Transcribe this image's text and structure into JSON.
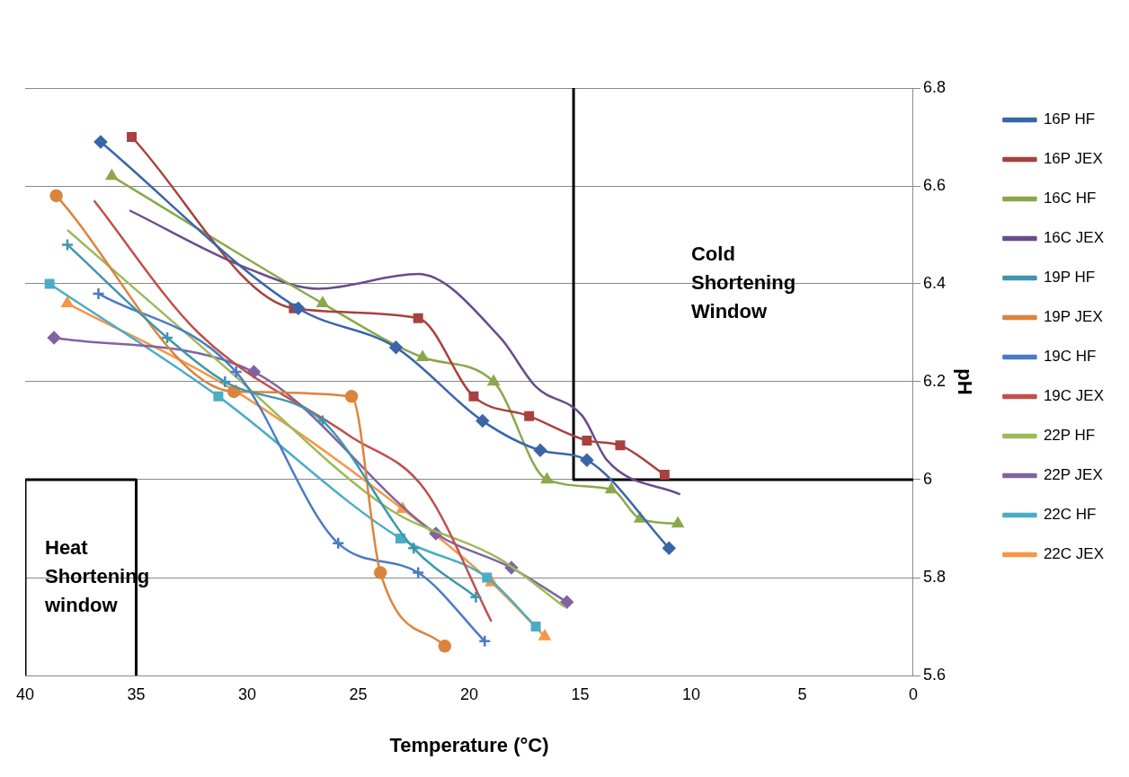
{
  "chart_data": {
    "type": "line",
    "xlabel": "Temperature (°C)",
    "ylabel": "pH",
    "xlim": [
      40,
      0
    ],
    "xticks": [
      40,
      35,
      30,
      25,
      20,
      15,
      10,
      5,
      0
    ],
    "ylim": [
      5.6,
      6.8
    ],
    "yticks": [
      {
        "value": 5.6,
        "label": "5.6"
      },
      {
        "value": 5.8,
        "label": "5.8"
      },
      {
        "value": 6.0,
        "label": "6"
      },
      {
        "value": 6.2,
        "label": "6.2"
      },
      {
        "value": 6.4,
        "label": "6.4"
      },
      {
        "value": 6.6,
        "label": "6.6"
      },
      {
        "value": 6.8,
        "label": "6.8"
      }
    ],
    "grid": "y",
    "legend": "right",
    "annotations": [
      "Cold Shortening Window",
      "Heat Shortening window"
    ],
    "series": [
      {
        "name": "16P HF",
        "color": "#3a66a8",
        "marker": "diamond",
        "x": [
          36.6,
          27.7,
          23.3,
          19.4,
          16.8,
          14.7,
          11.0
        ],
        "values": [
          6.69,
          6.35,
          6.27,
          6.12,
          6.06,
          6.04,
          5.86
        ]
      },
      {
        "name": "16P JEX",
        "color": "#a8413f",
        "marker": "square",
        "x": [
          35.2,
          27.9,
          22.3,
          19.8,
          17.3,
          14.7,
          13.2,
          11.2
        ],
        "values": [
          6.7,
          6.35,
          6.33,
          6.17,
          6.13,
          6.08,
          6.07,
          6.01
        ]
      },
      {
        "name": "16C HF",
        "color": "#8aa84a",
        "marker": "triangle",
        "x": [
          36.1,
          26.6,
          22.1,
          18.9,
          16.5,
          13.6,
          12.3,
          10.6
        ],
        "values": [
          6.62,
          6.36,
          6.25,
          6.2,
          6.0,
          5.98,
          5.92,
          5.91
        ]
      },
      {
        "name": "16C JEX",
        "color": "#6a4c8c",
        "marker": "none",
        "x": [
          35.3,
          29.9,
          26.8,
          22.3,
          18.6,
          17.0,
          14.9,
          13.8,
          10.5
        ],
        "values": [
          6.55,
          6.43,
          6.39,
          6.42,
          6.29,
          6.19,
          6.13,
          6.04,
          5.97
        ]
      },
      {
        "name": "19P HF",
        "color": "#3d96ae",
        "marker": "cross",
        "x": [
          38.1,
          33.6,
          31.0,
          26.6,
          22.5,
          19.7
        ],
        "values": [
          6.48,
          6.29,
          6.2,
          6.12,
          5.86,
          5.76
        ]
      },
      {
        "name": "19P JEX",
        "color": "#db843d",
        "marker": "circle",
        "x": [
          38.6,
          30.6,
          25.3,
          24.0,
          21.1
        ],
        "values": [
          6.58,
          6.18,
          6.17,
          5.81,
          5.66
        ]
      },
      {
        "name": "19C HF",
        "color": "#4a7bc6",
        "marker": "cross",
        "x": [
          36.7,
          30.5,
          25.9,
          22.3,
          19.3
        ],
        "values": [
          6.38,
          6.22,
          5.87,
          5.81,
          5.67
        ]
      },
      {
        "name": "19C JEX",
        "color": "#c0504d",
        "marker": "none",
        "x": [
          36.9,
          32.2,
          25.4,
          22.0,
          19.0
        ],
        "values": [
          6.57,
          6.3,
          6.09,
          5.98,
          5.71
        ]
      },
      {
        "name": "22P HF",
        "color": "#9bbb59",
        "marker": "none",
        "x": [
          38.1,
          31.0,
          23.6,
          18.7,
          15.7
        ],
        "values": [
          6.51,
          6.23,
          5.94,
          5.84,
          5.74
        ]
      },
      {
        "name": "22P JEX",
        "color": "#8064a2",
        "marker": "diamond",
        "x": [
          38.7,
          29.7,
          21.5,
          18.1,
          15.6
        ],
        "values": [
          6.29,
          6.22,
          5.89,
          5.82,
          5.75
        ]
      },
      {
        "name": "22C HF",
        "color": "#4bacc6",
        "marker": "square",
        "x": [
          38.9,
          31.3,
          23.1,
          19.2,
          17.0
        ],
        "values": [
          6.4,
          6.17,
          5.88,
          5.8,
          5.7
        ]
      },
      {
        "name": "22C JEX",
        "color": "#f79646",
        "marker": "triangle",
        "x": [
          38.1,
          30.5,
          23.0,
          19.0,
          16.6
        ],
        "values": [
          6.36,
          6.18,
          5.94,
          5.79,
          5.68
        ]
      },
      {
        "color": "#000000",
        "marker": "none",
        "x": [
          15.3,
          15.3,
          0
        ],
        "values": [
          6.8,
          6.0,
          6.0
        ]
      },
      {
        "color": "#000000",
        "marker": "none",
        "x": [
          40,
          40,
          35,
          35
        ],
        "values": [
          5.6,
          6.0,
          6.0,
          5.6
        ]
      }
    ]
  }
}
